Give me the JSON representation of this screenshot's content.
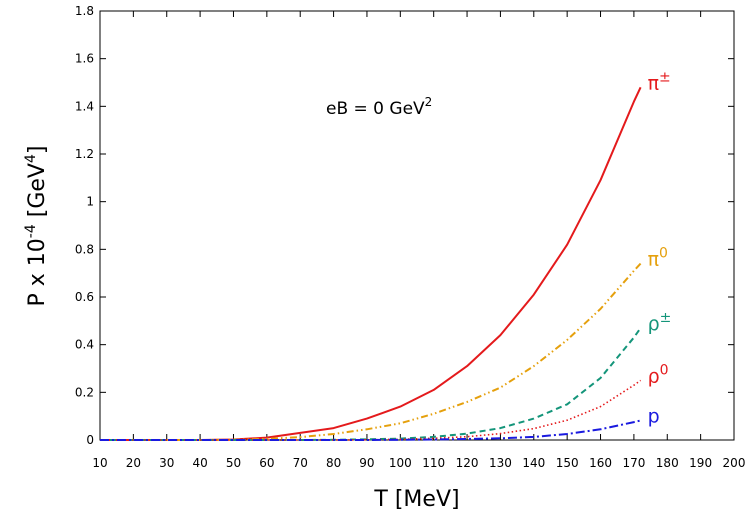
{
  "chart_data": {
    "type": "line",
    "xlabel": "T [MeV]",
    "ylabel": "P x 10",
    "ylabel_sup": "-4",
    "ylabel_unit": " [GeV",
    "ylabel_unit_sup": "4",
    "ylabel_close": "]",
    "annotation": {
      "text": "eB = 0 GeV",
      "sup": "2"
    },
    "xlim": [
      10,
      200
    ],
    "ylim": [
      0,
      1.8
    ],
    "x_ticks": [
      10,
      20,
      30,
      40,
      50,
      60,
      70,
      80,
      90,
      100,
      110,
      120,
      130,
      140,
      150,
      160,
      170,
      180,
      190,
      200
    ],
    "y_ticks": [
      0,
      0.2,
      0.4,
      0.6,
      0.8,
      1,
      1.2,
      1.4,
      1.6,
      1.8
    ],
    "y_tick_labels": [
      "0",
      "0.2",
      "0.4",
      "0.6",
      "0.8",
      "1",
      "1.2",
      "1.4",
      "1.6",
      "1.8"
    ],
    "grid": false,
    "legend": "inline at line ends",
    "x": [
      10,
      20,
      30,
      40,
      50,
      60,
      70,
      80,
      90,
      100,
      110,
      120,
      130,
      140,
      150,
      160,
      170,
      172
    ],
    "series": [
      {
        "name": "π",
        "sup": "±",
        "color": "#e41a1c",
        "dash": "",
        "values": [
          0,
          0,
          0,
          0,
          0.002,
          0.01,
          0.03,
          0.05,
          0.09,
          0.14,
          0.21,
          0.31,
          0.44,
          0.61,
          0.82,
          1.09,
          1.42,
          1.48
        ]
      },
      {
        "name": "π",
        "sup": "0",
        "color": "#e5a00d",
        "dash": "7,3,1.5,3,1.5,3",
        "values": [
          0,
          0,
          0,
          0,
          0.001,
          0.005,
          0.012,
          0.025,
          0.045,
          0.07,
          0.11,
          0.16,
          0.22,
          0.31,
          0.42,
          0.55,
          0.71,
          0.74
        ]
      },
      {
        "name": "ρ",
        "sup": "±",
        "color": "#14957a",
        "dash": "6,4",
        "values": [
          0,
          0,
          0,
          0,
          0,
          0,
          0,
          0.001,
          0.003,
          0.006,
          0.013,
          0.027,
          0.05,
          0.09,
          0.15,
          0.26,
          0.43,
          0.47
        ]
      },
      {
        "name": "ρ",
        "sup": "0",
        "color": "#e41a1c",
        "dash": "1.5,2.5",
        "values": [
          0,
          0,
          0,
          0,
          0,
          0,
          0,
          0,
          0.001,
          0.003,
          0.007,
          0.014,
          0.027,
          0.048,
          0.083,
          0.14,
          0.23,
          0.25
        ]
      },
      {
        "name": "p",
        "sup": "",
        "color": "#1a1adf",
        "dash": "9,3,2,3",
        "values": [
          0,
          0,
          0,
          0,
          0,
          0,
          0,
          0,
          0,
          0.001,
          0.002,
          0.004,
          0.007,
          0.013,
          0.025,
          0.045,
          0.075,
          0.082
        ]
      }
    ]
  }
}
